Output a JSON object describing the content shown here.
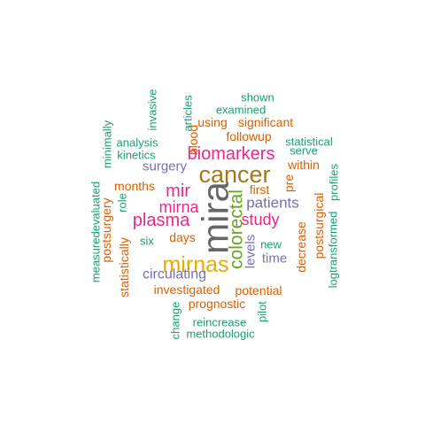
{
  "palette": {
    "teal": "#1b9e77",
    "orange": "#d95f02",
    "purple": "#7570b3",
    "magenta": "#e7298a",
    "gold": "#e6ab02",
    "brown": "#a6761d",
    "gray": "#666666"
  },
  "words": [
    {
      "text": "mira",
      "color": "#666666"
    },
    {
      "text": "cancer",
      "color": "#a6761d"
    },
    {
      "text": "mirnas",
      "color": "#e6ab02"
    },
    {
      "text": "colorectal",
      "color": "#66a61e"
    },
    {
      "text": "biomarkers",
      "color": "#e7298a"
    },
    {
      "text": "plasma",
      "color": "#e7298a"
    },
    {
      "text": "mir",
      "color": "#e7298a"
    },
    {
      "text": "mirna",
      "color": "#e7298a"
    },
    {
      "text": "study",
      "color": "#e7298a"
    },
    {
      "text": "patients",
      "color": "#7570b3"
    },
    {
      "text": "circulating",
      "color": "#7570b3"
    },
    {
      "text": "surgery",
      "color": "#7570b3"
    },
    {
      "text": "levels",
      "color": "#7570b3"
    },
    {
      "text": "time",
      "color": "#7570b3"
    },
    {
      "text": "significant",
      "color": "#d95f02"
    },
    {
      "text": "using",
      "color": "#d95f02"
    },
    {
      "text": "followup",
      "color": "#d95f02"
    },
    {
      "text": "within",
      "color": "#d95f02"
    },
    {
      "text": "months",
      "color": "#d95f02"
    },
    {
      "text": "first",
      "color": "#d95f02"
    },
    {
      "text": "days",
      "color": "#d95f02"
    },
    {
      "text": "pre",
      "color": "#d95f02"
    },
    {
      "text": "investigated",
      "color": "#d95f02"
    },
    {
      "text": "potential",
      "color": "#d95f02"
    },
    {
      "text": "prognostic",
      "color": "#d95f02"
    },
    {
      "text": "postsurgical",
      "color": "#d95f02"
    },
    {
      "text": "decrease",
      "color": "#d95f02"
    },
    {
      "text": "postsurgery",
      "color": "#d95f02"
    },
    {
      "text": "statistically",
      "color": "#d95f02"
    },
    {
      "text": "blood",
      "color": "#d95f02"
    },
    {
      "text": "shown",
      "color": "#1b9e77"
    },
    {
      "text": "examined",
      "color": "#1b9e77"
    },
    {
      "text": "articles",
      "color": "#1b9e77"
    },
    {
      "text": "invasive",
      "color": "#1b9e77"
    },
    {
      "text": "statistical",
      "color": "#1b9e77"
    },
    {
      "text": "serve",
      "color": "#1b9e77"
    },
    {
      "text": "analysis",
      "color": "#1b9e77"
    },
    {
      "text": "kinetics",
      "color": "#1b9e77"
    },
    {
      "text": "minimally",
      "color": "#1b9e77"
    },
    {
      "text": "profiles",
      "color": "#1b9e77"
    },
    {
      "text": "measuredevaluated",
      "color": "#1b9e77"
    },
    {
      "text": "role",
      "color": "#1b9e77"
    },
    {
      "text": "six",
      "color": "#1b9e77"
    },
    {
      "text": "new",
      "color": "#1b9e77"
    },
    {
      "text": "logtransformed",
      "color": "#1b9e77"
    },
    {
      "text": "change",
      "color": "#1b9e77"
    },
    {
      "text": "reincrease",
      "color": "#1b9e77"
    },
    {
      "text": "pilot",
      "color": "#1b9e77"
    },
    {
      "text": "methodologic",
      "color": "#1b9e77"
    }
  ]
}
